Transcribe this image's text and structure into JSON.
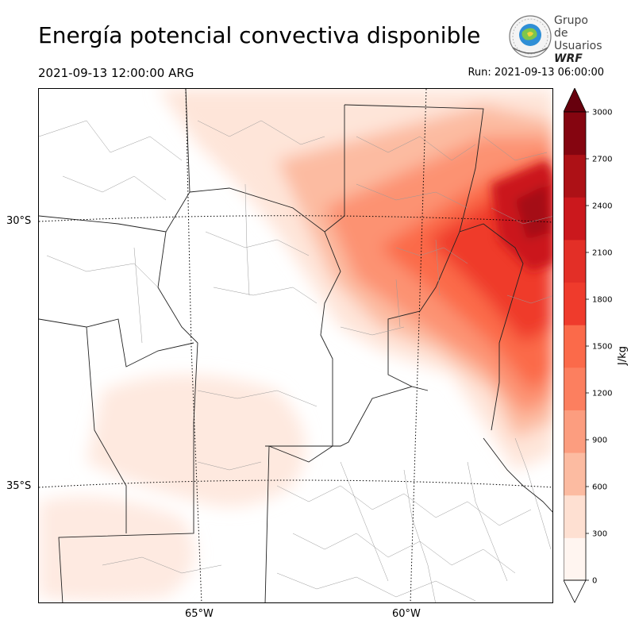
{
  "header": {
    "title": "Energía potencial convectiva disponible",
    "valid_time": "2021-09-13 12:00:00 ARG",
    "run_time": "Run: 2021-09-13 06:00:00"
  },
  "logo": {
    "line1": "Grupo de",
    "line2": "Usuarios",
    "line3": "WRF"
  },
  "map": {
    "lat_labels": [
      "30°S",
      "35°S"
    ],
    "lon_labels": [
      "65°W",
      "60°W"
    ],
    "field_colors": [
      "#fee5d9",
      "#fcbba1",
      "#fc9272",
      "#fb6a4a",
      "#ef3b2c",
      "#cb181d",
      "#99000d"
    ]
  },
  "colorbar": {
    "unit": "J/kg",
    "ticks": [
      "0",
      "300",
      "600",
      "900",
      "1200",
      "1500",
      "1800",
      "2100",
      "2400",
      "2700",
      "3000"
    ],
    "colors": [
      "#fff5f0",
      "#fee0d2",
      "#fcbba1",
      "#fc9d7f",
      "#fc7f5f",
      "#fb6a4a",
      "#ef3b2c",
      "#e32f27",
      "#cb181d",
      "#ad1116",
      "#850510"
    ],
    "over_color": "#67000d",
    "under_color": "#ffffff"
  }
}
